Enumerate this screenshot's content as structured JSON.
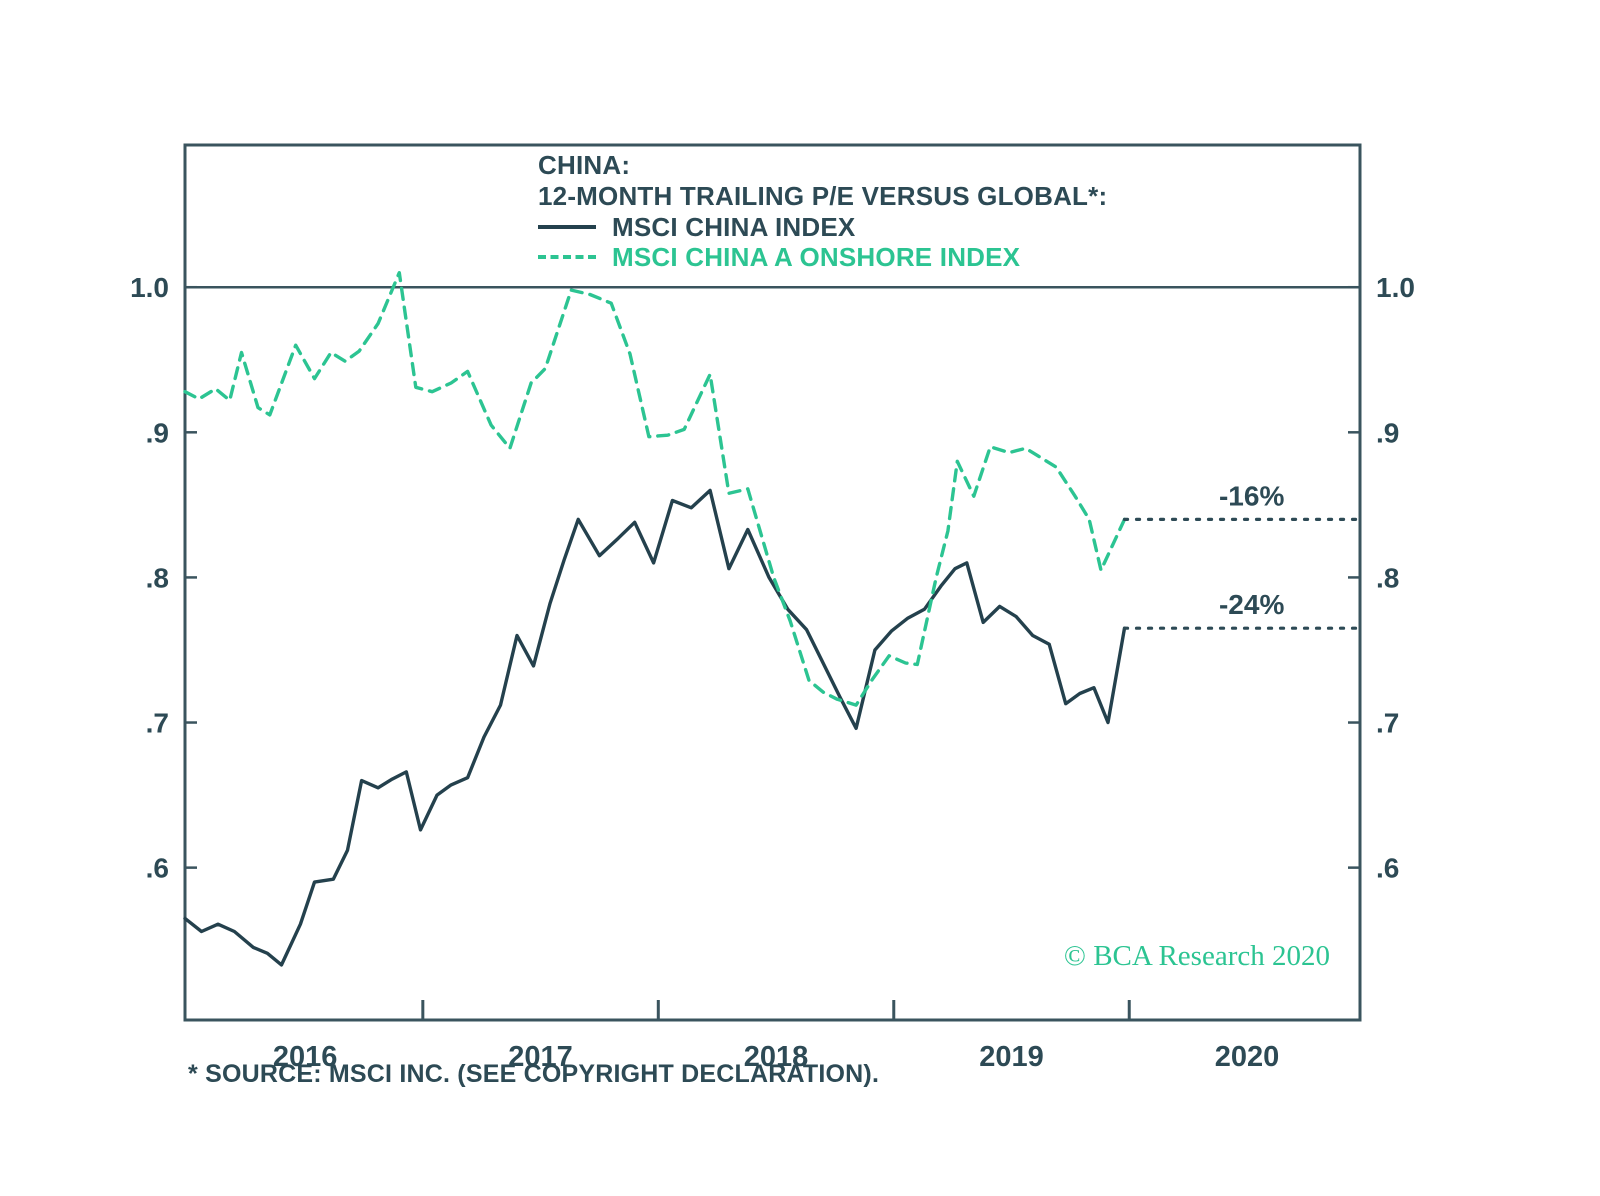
{
  "title": {
    "line1": "CHINA:",
    "line2": "12-MONTH TRAILING P/E VERSUS GLOBAL*:"
  },
  "legend": [
    {
      "label": "MSCI CHINA INDEX",
      "style": "solid",
      "color": "#24414d"
    },
    {
      "label": "MSCI CHINA A ONSHORE INDEX",
      "style": "dashed",
      "color": "#2cc492"
    }
  ],
  "copyright": "© BCA Research 2020",
  "footnote": "* SOURCE: MSCI INC. (SEE COPYRIGHT DECLARATION).",
  "chart_data": {
    "type": "line",
    "title": "CHINA: 12-MONTH TRAILING P/E VERSUS GLOBAL",
    "x_range": [
      2015.49,
      2020.48
    ],
    "y_range": [
      0.495,
      1.098
    ],
    "reference_line": 1.0,
    "annotation_x": 2020.02,
    "frame_color": "#3a545e",
    "text_color": "#2d4a55",
    "grid": false,
    "y_ticks": [
      {
        "v": 1.0,
        "label": "1.0"
      },
      {
        "v": 0.9,
        "label": ".9"
      },
      {
        "v": 0.8,
        "label": ".8"
      },
      {
        "v": 0.7,
        "label": ".7"
      },
      {
        "v": 0.6,
        "label": ".6"
      }
    ],
    "x_ticks": [
      {
        "v": 2016,
        "label": "2016"
      },
      {
        "v": 2017,
        "label": "2017"
      },
      {
        "v": 2018,
        "label": "2018"
      },
      {
        "v": 2019,
        "label": "2019"
      },
      {
        "v": 2020,
        "label": "2020"
      }
    ],
    "x_minor_ticks": [
      2016.5,
      2017.5,
      2018.5,
      2019.5
    ],
    "series": [
      {
        "name": "MSCI CHINA INDEX",
        "style": "solid",
        "color": "#24414d",
        "dash": null,
        "points": [
          [
            2015.49,
            0.565
          ],
          [
            2015.56,
            0.556
          ],
          [
            2015.63,
            0.561
          ],
          [
            2015.7,
            0.556
          ],
          [
            2015.78,
            0.545
          ],
          [
            2015.84,
            0.541
          ],
          [
            2015.9,
            0.533
          ],
          [
            2015.98,
            0.561
          ],
          [
            2016.04,
            0.59
          ],
          [
            2016.12,
            0.592
          ],
          [
            2016.18,
            0.612
          ],
          [
            2016.24,
            0.66
          ],
          [
            2016.31,
            0.655
          ],
          [
            2016.37,
            0.661
          ],
          [
            2016.43,
            0.666
          ],
          [
            2016.49,
            0.626
          ],
          [
            2016.56,
            0.65
          ],
          [
            2016.62,
            0.657
          ],
          [
            2016.69,
            0.662
          ],
          [
            2016.76,
            0.69
          ],
          [
            2016.83,
            0.712
          ],
          [
            2016.9,
            0.76
          ],
          [
            2016.97,
            0.739
          ],
          [
            2017.04,
            0.782
          ],
          [
            2017.1,
            0.812
          ],
          [
            2017.16,
            0.84
          ],
          [
            2017.25,
            0.815
          ],
          [
            2017.33,
            0.827
          ],
          [
            2017.4,
            0.838
          ],
          [
            2017.48,
            0.81
          ],
          [
            2017.56,
            0.853
          ],
          [
            2017.64,
            0.848
          ],
          [
            2017.72,
            0.86
          ],
          [
            2017.8,
            0.806
          ],
          [
            2017.88,
            0.833
          ],
          [
            2017.97,
            0.8
          ],
          [
            2018.05,
            0.778
          ],
          [
            2018.13,
            0.764
          ],
          [
            2018.2,
            0.741
          ],
          [
            2018.27,
            0.718
          ],
          [
            2018.34,
            0.696
          ],
          [
            2018.42,
            0.75
          ],
          [
            2018.49,
            0.763
          ],
          [
            2018.56,
            0.772
          ],
          [
            2018.63,
            0.778
          ],
          [
            2018.7,
            0.794
          ],
          [
            2018.76,
            0.806
          ],
          [
            2018.81,
            0.81
          ],
          [
            2018.88,
            0.769
          ],
          [
            2018.95,
            0.78
          ],
          [
            2019.02,
            0.773
          ],
          [
            2019.09,
            0.76
          ],
          [
            2019.16,
            0.754
          ],
          [
            2019.23,
            0.713
          ],
          [
            2019.29,
            0.72
          ],
          [
            2019.35,
            0.724
          ],
          [
            2019.41,
            0.7
          ],
          [
            2019.48,
            0.765
          ]
        ],
        "extension": {
          "level": 0.765,
          "from": 2019.48,
          "label": "-24%"
        }
      },
      {
        "name": "MSCI CHINA A ONSHORE INDEX",
        "style": "dashed",
        "color": "#2cc492",
        "dash": "11 8",
        "points": [
          [
            2015.49,
            0.928
          ],
          [
            2015.55,
            0.923
          ],
          [
            2015.62,
            0.93
          ],
          [
            2015.68,
            0.922
          ],
          [
            2015.73,
            0.955
          ],
          [
            2015.8,
            0.917
          ],
          [
            2015.85,
            0.912
          ],
          [
            2015.96,
            0.96
          ],
          [
            2016.04,
            0.937
          ],
          [
            2016.11,
            0.955
          ],
          [
            2016.17,
            0.949
          ],
          [
            2016.23,
            0.956
          ],
          [
            2016.31,
            0.975
          ],
          [
            2016.4,
            1.01
          ],
          [
            2016.47,
            0.931
          ],
          [
            2016.54,
            0.928
          ],
          [
            2016.62,
            0.934
          ],
          [
            2016.69,
            0.942
          ],
          [
            2016.79,
            0.905
          ],
          [
            2016.87,
            0.889
          ],
          [
            2016.96,
            0.934
          ],
          [
            2017.02,
            0.944
          ],
          [
            2017.13,
            0.998
          ],
          [
            2017.21,
            0.995
          ],
          [
            2017.3,
            0.989
          ],
          [
            2017.38,
            0.954
          ],
          [
            2017.46,
            0.897
          ],
          [
            2017.54,
            0.898
          ],
          [
            2017.61,
            0.902
          ],
          [
            2017.72,
            0.94
          ],
          [
            2017.8,
            0.858
          ],
          [
            2017.88,
            0.861
          ],
          [
            2017.99,
            0.8
          ],
          [
            2018.06,
            0.77
          ],
          [
            2018.14,
            0.729
          ],
          [
            2018.2,
            0.721
          ],
          [
            2018.26,
            0.716
          ],
          [
            2018.34,
            0.712
          ],
          [
            2018.41,
            0.73
          ],
          [
            2018.48,
            0.746
          ],
          [
            2018.55,
            0.741
          ],
          [
            2018.6,
            0.74
          ],
          [
            2018.68,
            0.8
          ],
          [
            2018.73,
            0.832
          ],
          [
            2018.77,
            0.88
          ],
          [
            2018.84,
            0.856
          ],
          [
            2018.91,
            0.89
          ],
          [
            2018.99,
            0.886
          ],
          [
            2019.06,
            0.889
          ],
          [
            2019.13,
            0.882
          ],
          [
            2019.19,
            0.876
          ],
          [
            2019.27,
            0.856
          ],
          [
            2019.33,
            0.84
          ],
          [
            2019.38,
            0.805
          ],
          [
            2019.48,
            0.84
          ]
        ],
        "extension": {
          "level": 0.84,
          "from": 2019.48,
          "label": "-16%"
        }
      }
    ]
  }
}
